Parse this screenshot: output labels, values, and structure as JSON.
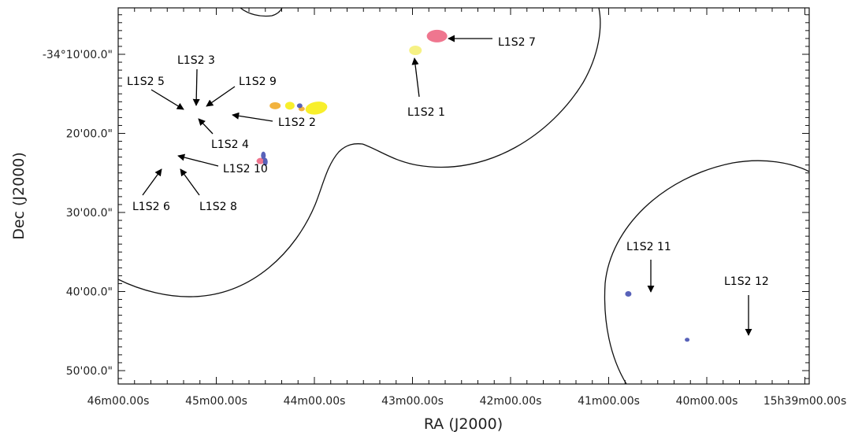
{
  "chart_data": {
    "type": "scatter",
    "xlabel": "RA (J2000)",
    "ylabel": "Dec (J2000)",
    "x_ticks": [
      "46m00.00s",
      "45m00.00s",
      "44m00.00s",
      "43m00.00s",
      "42m00.00s",
      "41m00.00s",
      "40m00.00s",
      "15h39m00.00s"
    ],
    "y_ticks": [
      "-34°10'00.0\"",
      "20'00.0\"",
      "30'00.0\"",
      "40'00.0\"",
      "50'00.0\""
    ],
    "x_unit": "RA minutes of time after 15h39m (axis increases to the left)",
    "y_unit": "Dec arcminutes south of -34°",
    "xlim": [
      7.0,
      3.45
    ],
    "ylim": [
      51.5,
      5.0
    ],
    "grid": false,
    "colors": {
      "pink": "#ee6a86",
      "yellow": "#f7ee1a",
      "pale_yellow": "#f5f07a",
      "orange": "#f1ad2f",
      "blue": "#4a55b3",
      "contour": "#111111"
    },
    "sources": [
      {
        "label": "L1S2 1",
        "ra_min": 3.97,
        "dec_arcmin": 9.5,
        "color": "pale_yellow"
      },
      {
        "label": "L1S2 2",
        "ra_min": 4.98,
        "dec_arcmin": 16.8,
        "color": "yellow"
      },
      {
        "label": "L1S2 3",
        "ra_min": 5.25,
        "dec_arcmin": 16.5,
        "color": "yellow"
      },
      {
        "label": "L1S2 4",
        "ra_min": 5.13,
        "dec_arcmin": 16.9,
        "color": "orange"
      },
      {
        "label": "L1S2 5",
        "ra_min": 5.4,
        "dec_arcmin": 16.5,
        "color": "orange"
      },
      {
        "label": "L1S2 6",
        "ra_min": 5.55,
        "dec_arcmin": 23.5,
        "color": "pink"
      },
      {
        "label": "L1S2 7",
        "ra_min": 3.75,
        "dec_arcmin": 7.7,
        "color": "pink"
      },
      {
        "label": "L1S2 8",
        "ra_min": 5.5,
        "dec_arcmin": 23.6,
        "color": "blue"
      },
      {
        "label": "L1S2 9",
        "ra_min": 5.15,
        "dec_arcmin": 16.5,
        "color": "blue"
      },
      {
        "label": "L1S2 10",
        "ra_min": 5.52,
        "dec_arcmin": 22.8,
        "color": "blue"
      },
      {
        "label": "L1S2 11",
        "ra_min": 1.8,
        "dec_arcmin": 40.3,
        "color": "blue"
      },
      {
        "label": "L1S2 12",
        "ra_min": 1.2,
        "dec_arcmin": 46.1,
        "color": "blue"
      }
    ]
  }
}
